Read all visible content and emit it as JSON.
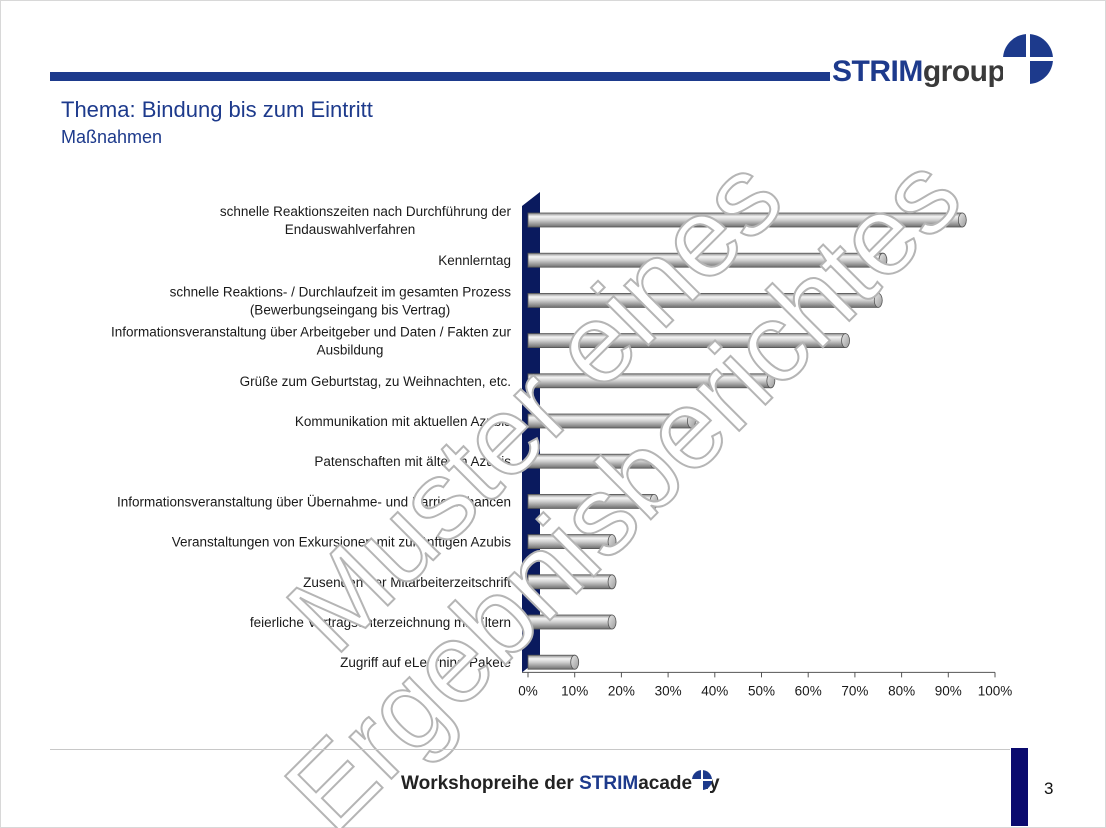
{
  "header": {
    "title": "Thema: Bindung bis zum Eintritt",
    "subtitle": "Maßnahmen",
    "logo_strim": "STRIM",
    "logo_group": "group"
  },
  "watermark": {
    "line1": "Muster eines",
    "line2": "Ergebnisberichtes"
  },
  "footer": {
    "text": "Workshopreihe der ",
    "brand_strim": "STRIM",
    "brand_academy": "academy",
    "page_number": "3"
  },
  "colors": {
    "accent": "#1d3a8c",
    "axis_wall": "#0a1a5e",
    "bar": "#b8b8b8"
  },
  "chart_data": {
    "type": "bar",
    "orientation": "horizontal",
    "categories": [
      [
        "schnelle Reaktionszeiten nach Durchführung der",
        "Endauswahlverfahren"
      ],
      [
        "Kennlerntag"
      ],
      [
        "schnelle Reaktions- / Durchlaufzeit im gesamten Prozess",
        "(Bewerbungseingang bis Vertrag)"
      ],
      [
        "Informationsveranstaltung über Arbeitgeber und Daten / Fakten zur",
        "Ausbildung"
      ],
      [
        "Grüße zum Geburtstag, zu Weihnachten, etc."
      ],
      [
        "Kommunikation mit aktuellen Azubis"
      ],
      [
        "Patenschaften mit älteren Azubis"
      ],
      [
        "Informationsveranstaltung über Übernahme- und Karrierechancen"
      ],
      [
        "Veranstaltungen von Exkursionen mit zukünftigen Azubis"
      ],
      [
        "Zusenden der Mitarbeiterzeitschrift"
      ],
      [
        "feierliche Vertragsunterzeichnung mit Eltern"
      ],
      [
        "Zugriff auf eLearning-Pakete"
      ]
    ],
    "values": [
      93,
      76,
      75,
      68,
      52,
      35,
      27,
      27,
      18,
      18,
      18,
      10
    ],
    "xlim": [
      0,
      100
    ],
    "xticks": [
      "0%",
      "10%",
      "20%",
      "30%",
      "40%",
      "50%",
      "60%",
      "70%",
      "80%",
      "90%",
      "100%"
    ],
    "grid": false
  }
}
